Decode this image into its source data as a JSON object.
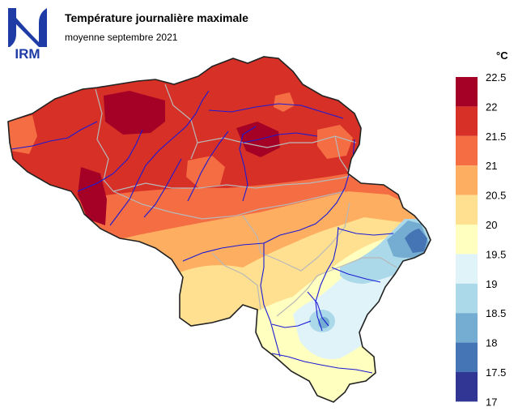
{
  "title": "Température journalière maximale",
  "subtitle": "moyenne septembre 2021",
  "logo": {
    "text": "IRM",
    "color": "#1f3ca6"
  },
  "legend": {
    "unit": "°C",
    "classes": [
      {
        "upper": 22.5,
        "label": "22.5",
        "color": "#a50026"
      },
      {
        "upper": 22,
        "label": "22",
        "color": "#d73027"
      },
      {
        "upper": 21.5,
        "label": "21.5",
        "color": "#f46d43"
      },
      {
        "upper": 21,
        "label": "21",
        "color": "#fdae61"
      },
      {
        "upper": 20.5,
        "label": "20.5",
        "color": "#fee090"
      },
      {
        "upper": 20,
        "label": "20",
        "color": "#ffffbf"
      },
      {
        "upper": 19.5,
        "label": "19.5",
        "color": "#e0f3f8"
      },
      {
        "upper": 19,
        "label": "19",
        "color": "#abd9e9"
      },
      {
        "upper": 18.5,
        "label": "18.5",
        "color": "#74add1"
      },
      {
        "upper": 18,
        "label": "18",
        "color": "#4575b4"
      },
      {
        "upper": 17.5,
        "label": "17.5",
        "color": "#313695"
      }
    ],
    "bottom_label": "17"
  },
  "map_colors": {
    "border": "#222222",
    "provinces": "#b8b8b8",
    "rivers": "#1a1ad6"
  }
}
